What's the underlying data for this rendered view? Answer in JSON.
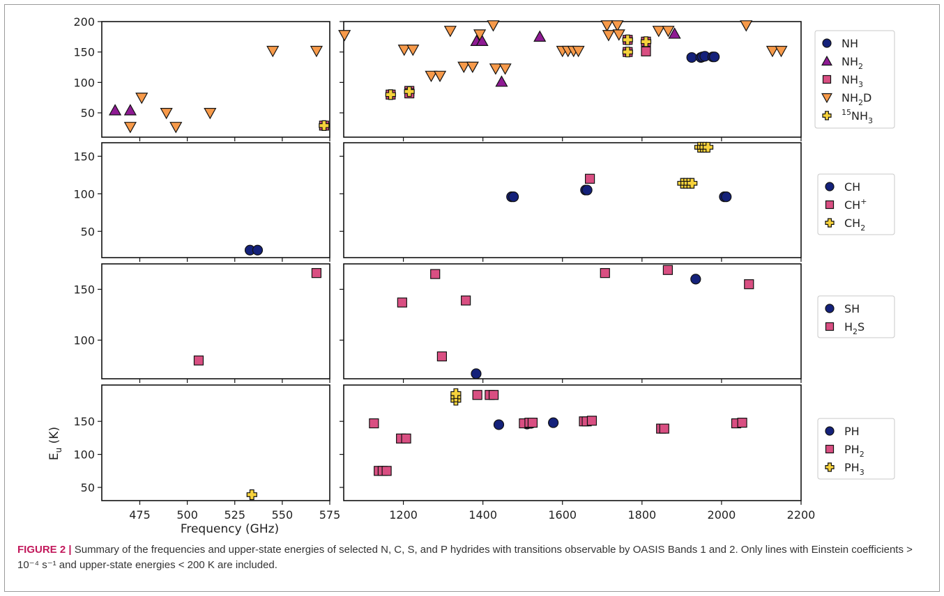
{
  "figure": {
    "caption_label": "FIGURE 2 |",
    "caption_text": "Summary of the frequencies and upper-state energies of selected N, C, S, and P hydrides with transitions observable by OASIS Bands 1 and 2. Only lines with Einstein coefficients > 10⁻⁴ s⁻¹ and upper-state energies < 200 K are included."
  },
  "colors": {
    "navy": "#14217a",
    "purple": "#8e1a93",
    "pink": "#d94f82",
    "orange": "#f79a4a",
    "yellow": "#f7d23c"
  },
  "chart_data": {
    "type": "scatter",
    "xlabel": "Frequency (GHz)",
    "ylabel": "E_u (K)",
    "left_xlim": [
      455,
      575
    ],
    "right_xlim": [
      1050,
      2200
    ],
    "left_xticks": [
      475,
      500,
      525,
      550,
      575
    ],
    "right_xticks": [
      1200,
      1400,
      1600,
      1800,
      2000,
      2200
    ],
    "grid": false,
    "legend_placement": "outside-right",
    "panels": [
      {
        "ylim": [
          10,
          200
        ],
        "yticks": [
          50,
          100,
          150,
          200
        ],
        "legend": [
          {
            "main": "NH",
            "sub": "",
            "sup": "",
            "tail": "",
            "marker": "circle",
            "color": "navy"
          },
          {
            "main": "NH",
            "sub": "2",
            "sup": "",
            "tail": "",
            "marker": "triangle-up",
            "color": "purple"
          },
          {
            "main": "NH",
            "sub": "3",
            "sup": "",
            "tail": "",
            "marker": "square",
            "color": "pink"
          },
          {
            "main": "NH",
            "sub": "2",
            "sup": "",
            "tail": "D",
            "marker": "triangle-down",
            "color": "orange"
          },
          {
            "pre": "15",
            "main": "NH",
            "sub": "3",
            "sup": "",
            "tail": "",
            "marker": "plus",
            "color": "yellow"
          }
        ],
        "series": [
          {
            "name": "NH",
            "marker": "circle",
            "color": "navy",
            "points": [
              [
                1925,
                141
              ],
              [
                1948,
                141
              ],
              [
                1952,
                142
              ],
              [
                1958,
                143
              ],
              [
                1978,
                142
              ],
              [
                1982,
                142
              ]
            ]
          },
          {
            "name": "NH2",
            "marker": "triangle-up",
            "color": "purple",
            "points": [
              [
                462,
                54
              ],
              [
                470,
                54
              ],
              [
                1384,
                168
              ],
              [
                1398,
                168
              ],
              [
                1447,
                101
              ],
              [
                1543,
                175
              ],
              [
                1882,
                180
              ]
            ]
          },
          {
            "name": "NH3",
            "marker": "square",
            "color": "pink",
            "points": [
              [
                572,
                29
              ],
              [
                1168,
                80
              ],
              [
                1215,
                86
              ],
              [
                1215,
                82
              ],
              [
                1764,
                170
              ],
              [
                1764,
                150
              ],
              [
                1810,
                167
              ],
              [
                1810,
                151
              ]
            ]
          },
          {
            "name": "NH2D",
            "marker": "triangle-down",
            "color": "orange",
            "points": [
              [
                470,
                27
              ],
              [
                476,
                75
              ],
              [
                489,
                50
              ],
              [
                494,
                27
              ],
              [
                512,
                50
              ],
              [
                545,
                152
              ],
              [
                568,
                152
              ],
              [
                1052,
                178
              ],
              [
                1202,
                154
              ],
              [
                1224,
                154
              ],
              [
                1270,
                111
              ],
              [
                1292,
                111
              ],
              [
                1318,
                185
              ],
              [
                1352,
                126
              ],
              [
                1374,
                126
              ],
              [
                1392,
                179
              ],
              [
                1426,
                194
              ],
              [
                1432,
                123
              ],
              [
                1456,
                123
              ],
              [
                1600,
                152
              ],
              [
                1614,
                152
              ],
              [
                1628,
                152
              ],
              [
                1640,
                152
              ],
              [
                1712,
                194
              ],
              [
                1716,
                178
              ],
              [
                1738,
                194
              ],
              [
                1742,
                179
              ],
              [
                1842,
                185
              ],
              [
                1866,
                185
              ],
              [
                2062,
                194
              ],
              [
                2128,
                152
              ],
              [
                2150,
                152
              ]
            ]
          },
          {
            "name": "15NH3",
            "marker": "plus",
            "color": "yellow",
            "points": [
              [
                572,
                29
              ],
              [
                1168,
                80
              ],
              [
                1215,
                85
              ],
              [
                1764,
                170
              ],
              [
                1764,
                150
              ],
              [
                1810,
                167
              ]
            ]
          }
        ]
      },
      {
        "ylim": [
          15,
          168
        ],
        "yticks": [
          50,
          100,
          150
        ],
        "legend": [
          {
            "main": "CH",
            "sub": "",
            "sup": "",
            "tail": "",
            "marker": "circle",
            "color": "navy"
          },
          {
            "main": "CH",
            "sub": "",
            "sup": "+",
            "tail": "",
            "marker": "square",
            "color": "pink"
          },
          {
            "main": "CH",
            "sub": "2",
            "sup": "",
            "tail": "",
            "marker": "plus",
            "color": "yellow"
          }
        ],
        "series": [
          {
            "name": "CH",
            "marker": "circle",
            "color": "navy",
            "points": [
              [
                533,
                25
              ],
              [
                537,
                25
              ],
              [
                1472,
                96
              ],
              [
                1477,
                96
              ],
              [
                1658,
                105
              ],
              [
                1662,
                105
              ],
              [
                2007,
                96
              ],
              [
                2012,
                96
              ]
            ]
          },
          {
            "name": "CH+",
            "marker": "square",
            "color": "pink",
            "points": [
              [
                1669,
                120
              ]
            ]
          },
          {
            "name": "CH2",
            "marker": "plus",
            "color": "yellow",
            "points": [
              [
                1902,
                114
              ],
              [
                1910,
                114
              ],
              [
                1918,
                114
              ],
              [
                1926,
                114
              ],
              [
                1945,
                162
              ],
              [
                1952,
                162
              ],
              [
                1958,
                162
              ],
              [
                1966,
                162
              ]
            ]
          }
        ]
      },
      {
        "ylim": [
          62,
          175
        ],
        "yticks": [
          100,
          150
        ],
        "legend": [
          {
            "main": "SH",
            "sub": "",
            "sup": "",
            "tail": "",
            "marker": "circle",
            "color": "navy"
          },
          {
            "main": "H",
            "sub": "2",
            "sup": "",
            "tail": "S",
            "marker": "square",
            "color": "pink"
          }
        ],
        "series": [
          {
            "name": "SH",
            "marker": "circle",
            "color": "navy",
            "points": [
              [
                1383,
                67
              ],
              [
                1935,
                160
              ]
            ]
          },
          {
            "name": "H2S",
            "marker": "square",
            "color": "pink",
            "points": [
              [
                506,
                80
              ],
              [
                568,
                166
              ],
              [
                1197,
                137
              ],
              [
                1280,
                165
              ],
              [
                1297,
                84
              ],
              [
                1357,
                139
              ],
              [
                1707,
                166
              ],
              [
                1865,
                169
              ],
              [
                2069,
                155
              ]
            ]
          }
        ]
      },
      {
        "ylim": [
          30,
          205
        ],
        "yticks": [
          50,
          100,
          150
        ],
        "legend": [
          {
            "main": "PH",
            "sub": "",
            "sup": "",
            "tail": "",
            "marker": "circle",
            "color": "navy"
          },
          {
            "main": "PH",
            "sub": "2",
            "sup": "",
            "tail": "",
            "marker": "square",
            "color": "pink"
          },
          {
            "main": "PH",
            "sub": "3",
            "sup": "",
            "tail": "",
            "marker": "plus",
            "color": "yellow"
          }
        ],
        "series": [
          {
            "name": "PH",
            "marker": "circle",
            "color": "navy",
            "points": [
              [
                1440,
                145
              ],
              [
                1511,
                146
              ],
              [
                1521,
                147
              ],
              [
                1577,
                148
              ]
            ]
          },
          {
            "name": "PH2",
            "marker": "square",
            "color": "pink",
            "points": [
              [
                1126,
                147
              ],
              [
                1138,
                75
              ],
              [
                1148,
                75
              ],
              [
                1158,
                75
              ],
              [
                1194,
                124
              ],
              [
                1207,
                124
              ],
              [
                1386,
                190
              ],
              [
                1417,
                190
              ],
              [
                1427,
                190
              ],
              [
                1503,
                147
              ],
              [
                1517,
                148
              ],
              [
                1525,
                148
              ],
              [
                1654,
                150
              ],
              [
                1661,
                150
              ],
              [
                1674,
                151
              ],
              [
                1848,
                139
              ],
              [
                1856,
                139
              ],
              [
                2037,
                147
              ],
              [
                2052,
                148
              ]
            ]
          },
          {
            "name": "PH3",
            "marker": "plus",
            "color": "yellow",
            "points": [
              [
                534,
                39
              ],
              [
                1332,
                182
              ],
              [
                1332,
                187
              ],
              [
                1332,
                192
              ]
            ]
          }
        ]
      }
    ]
  }
}
